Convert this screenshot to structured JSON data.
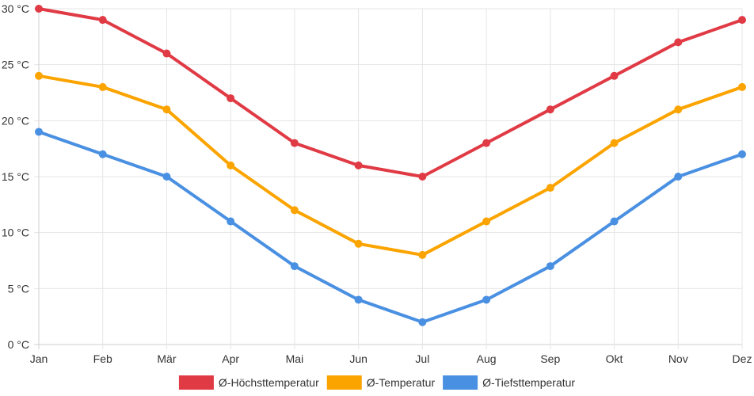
{
  "chart_data": {
    "type": "line",
    "title": "",
    "xlabel": "",
    "ylabel": "",
    "categories": [
      "Jan",
      "Feb",
      "Mär",
      "Apr",
      "Mai",
      "Jun",
      "Jul",
      "Aug",
      "Sep",
      "Okt",
      "Nov",
      "Dez"
    ],
    "ylim": [
      0,
      30
    ],
    "ytick_step": 5,
    "ytick_suffix": " °C",
    "grid": true,
    "legend_position": "bottom",
    "series": [
      {
        "name": "Ø-Höchsttemperatur",
        "color": "#e03a45",
        "values": [
          30,
          29,
          26,
          22,
          18,
          16,
          15,
          18,
          21,
          24,
          27,
          29
        ]
      },
      {
        "name": "Ø-Temperatur",
        "color": "#fba400",
        "values": [
          24,
          23,
          21,
          16,
          12,
          9,
          8,
          11,
          14,
          18,
          21,
          23
        ]
      },
      {
        "name": "Ø-Tiefsttemperatur",
        "color": "#4a90e2",
        "values": [
          19,
          17,
          15,
          11,
          7,
          4,
          2,
          4,
          7,
          11,
          15,
          17
        ]
      }
    ]
  }
}
